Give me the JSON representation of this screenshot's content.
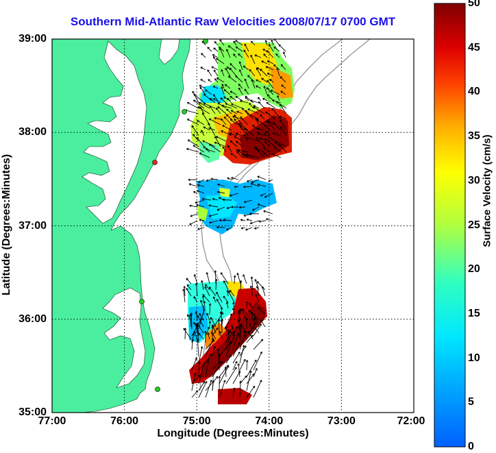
{
  "title": "Southern Mid-Atlantic Raw Velocities 2008/07/17 0700 GMT",
  "x_axis": {
    "label": "Longitude (Degrees:Minutes)",
    "ticks": [
      "77:00",
      "76:00",
      "75:00",
      "74:00",
      "73:00",
      "72:00"
    ],
    "range_deg_west": [
      77,
      72
    ]
  },
  "y_axis": {
    "label": "Latitude (Degrees:Minutes)",
    "ticks": [
      "39:00",
      "38:00",
      "37:00",
      "36:00",
      "35:00"
    ],
    "range_deg_north": [
      35,
      39
    ]
  },
  "colorbar": {
    "label": "Surface Velocity (cm/s)",
    "ticks": [
      "50",
      "45",
      "40",
      "35",
      "30",
      "25",
      "20",
      "15",
      "10",
      "5",
      "0"
    ],
    "range": [
      0,
      50
    ],
    "colormap": "jet"
  },
  "colors": {
    "title": "#1a10e8",
    "land": "#4aee9e",
    "bathymetry_contour": "#9a9a9a",
    "grid": "#000000",
    "station_marker": "#28cc28",
    "station_marker_alt": "#ee2222"
  },
  "map_features": {
    "grid": "dotted",
    "land": "shaded",
    "velocity_field": "arrows over colored speed grid",
    "legend": "colorbar right"
  }
}
